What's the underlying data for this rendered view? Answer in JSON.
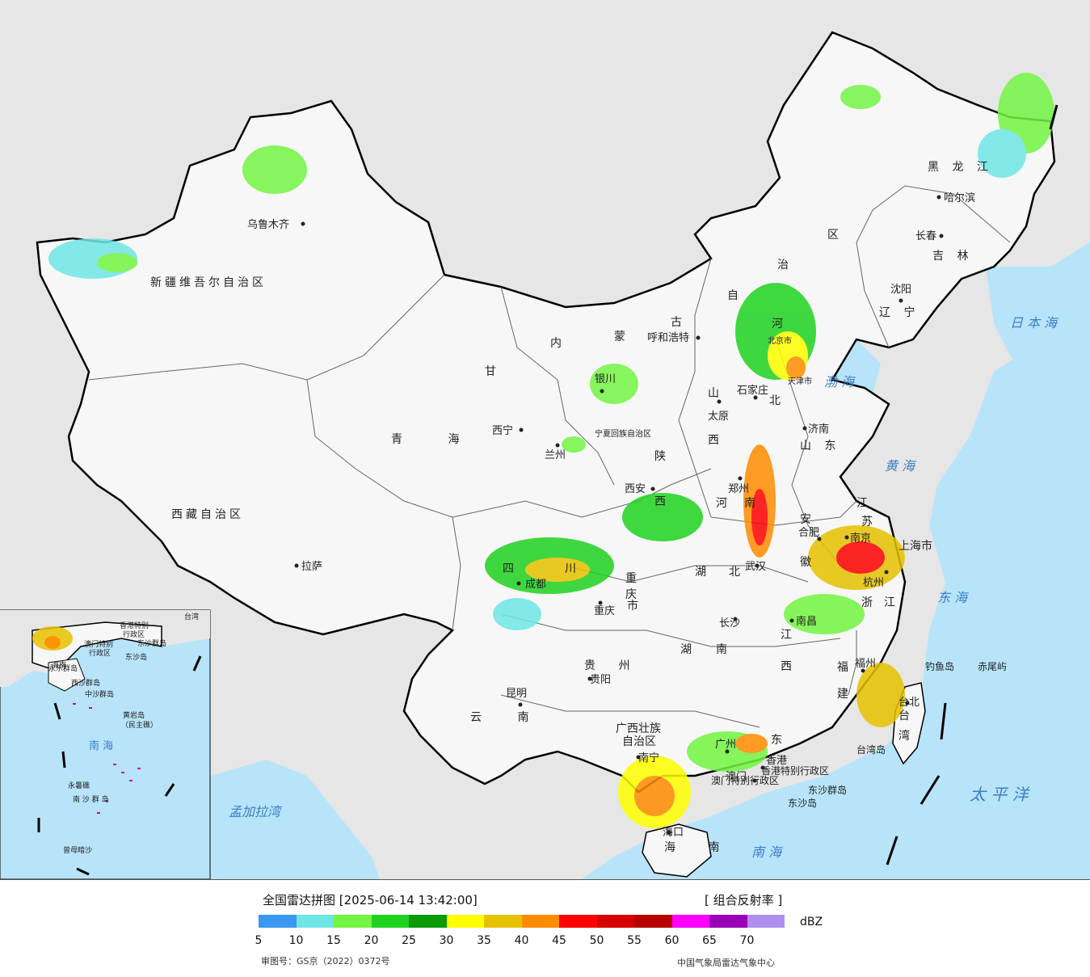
{
  "map": {
    "provinces": [
      {
        "name": "新疆维吾尔自治区"
      },
      {
        "name": "西藏自治区"
      },
      {
        "name": "青 海"
      },
      {
        "name": "甘"
      },
      {
        "name": "内"
      },
      {
        "name": "蒙"
      },
      {
        "name": "古"
      },
      {
        "name": "自"
      },
      {
        "name": "治"
      },
      {
        "name": "区"
      },
      {
        "name": "黑 龙 江"
      },
      {
        "name": "吉 林"
      },
      {
        "name": "辽 宁"
      },
      {
        "name": "河"
      },
      {
        "name": "北"
      },
      {
        "name": "山"
      },
      {
        "name": "西"
      },
      {
        "name": "陕"
      },
      {
        "name": "西"
      },
      {
        "name": "宁夏回族自治区"
      },
      {
        "name": "山 东"
      },
      {
        "name": "河"
      },
      {
        "name": "南"
      },
      {
        "name": "江"
      },
      {
        "name": "苏"
      },
      {
        "name": "安"
      },
      {
        "name": "徽"
      },
      {
        "name": "湖"
      },
      {
        "name": "北"
      },
      {
        "name": "四"
      },
      {
        "name": "川"
      },
      {
        "name": "重"
      },
      {
        "name": "庆"
      },
      {
        "name": "市"
      },
      {
        "name": "湖"
      },
      {
        "name": "南"
      },
      {
        "name": "江"
      },
      {
        "name": "西"
      },
      {
        "name": "浙"
      },
      {
        "name": "江"
      },
      {
        "name": "福"
      },
      {
        "name": "建"
      },
      {
        "name": "贵 州"
      },
      {
        "name": "云 南"
      },
      {
        "name": "广西壮族"
      },
      {
        "name": "自治区"
      },
      {
        "name": "东"
      },
      {
        "name": "台"
      },
      {
        "name": "湾"
      },
      {
        "name": "海 南"
      },
      {
        "name": "上海市"
      },
      {
        "name": "北京市"
      },
      {
        "name": "天津市"
      },
      {
        "name": "香港特别行政区"
      },
      {
        "name": "澳门特别行政区"
      }
    ],
    "cities": [
      {
        "name": "乌鲁木齐"
      },
      {
        "name": "拉萨"
      },
      {
        "name": "西宁"
      },
      {
        "name": "兰州"
      },
      {
        "name": "银川"
      },
      {
        "name": "呼和浩特"
      },
      {
        "name": "哈尔滨"
      },
      {
        "name": "长春"
      },
      {
        "name": "沈阳"
      },
      {
        "name": "石家庄"
      },
      {
        "name": "太原"
      },
      {
        "name": "济南"
      },
      {
        "name": "西安"
      },
      {
        "name": "郑州"
      },
      {
        "name": "合肥"
      },
      {
        "name": "南京"
      },
      {
        "name": "武汉"
      },
      {
        "name": "成都"
      },
      {
        "name": "重庆"
      },
      {
        "name": "长沙"
      },
      {
        "name": "南昌"
      },
      {
        "name": "杭州"
      },
      {
        "name": "福州"
      },
      {
        "name": "贵阳"
      },
      {
        "name": "昆明"
      },
      {
        "name": "南宁"
      },
      {
        "name": "广州"
      },
      {
        "name": "香港"
      },
      {
        "name": "澳门"
      },
      {
        "name": "海口"
      },
      {
        "name": "台北"
      }
    ],
    "seas": [
      {
        "name": "日 本 海"
      },
      {
        "name": "渤 海"
      },
      {
        "name": "黄 海"
      },
      {
        "name": "东 海"
      },
      {
        "name": "南 海"
      },
      {
        "name": "太 平 洋"
      },
      {
        "name": "孟加拉湾"
      }
    ],
    "islands": [
      {
        "name": "钓鱼岛"
      },
      {
        "name": "赤尾屿"
      },
      {
        "name": "台湾岛"
      },
      {
        "name": "东沙群岛"
      },
      {
        "name": "东沙岛"
      }
    ],
    "inset": {
      "labels": [
        {
          "name": "香港特别"
        },
        {
          "name": "行政区"
        },
        {
          "name": "澳门特别"
        },
        {
          "name": "行政区"
        },
        {
          "name": "东沙群岛"
        },
        {
          "name": "东沙岛"
        },
        {
          "name": "西沙群岛"
        },
        {
          "name": "永乐群岛"
        },
        {
          "name": "中沙群岛"
        },
        {
          "name": "黄岩岛"
        },
        {
          "name": "（民主礁）"
        },
        {
          "name": "南 海"
        },
        {
          "name": "永暑礁"
        },
        {
          "name": "南 沙 群 岛"
        },
        {
          "name": "曾母暗沙"
        },
        {
          "name": "海南"
        },
        {
          "name": "台湾"
        }
      ]
    }
  },
  "legend": {
    "title": "全国雷达拼图 [2025-06-14 13:42:00]",
    "product": "[ 组合反射率 ]",
    "unit": "dBZ",
    "colors": [
      "#3a98f0",
      "#6ee6e6",
      "#73f542",
      "#1fd21f",
      "#0a9a0a",
      "#ffff00",
      "#e6c200",
      "#ff8c00",
      "#ff0000",
      "#d60000",
      "#b80000",
      "#ff00ff",
      "#9a00b4",
      "#b08ef0"
    ],
    "ticks": [
      "5",
      "10",
      "15",
      "20",
      "25",
      "30",
      "35",
      "40",
      "45",
      "50",
      "55",
      "60",
      "65",
      "70"
    ],
    "approval_number": "审图号：GS京（2022）0372号",
    "organization": "中国气象局雷达气象中心"
  },
  "colors": {
    "ocean": "#b8e4fa",
    "foreign_land": "#e6e6e6",
    "china_land": "#f7f7f7",
    "border": "#000000"
  }
}
